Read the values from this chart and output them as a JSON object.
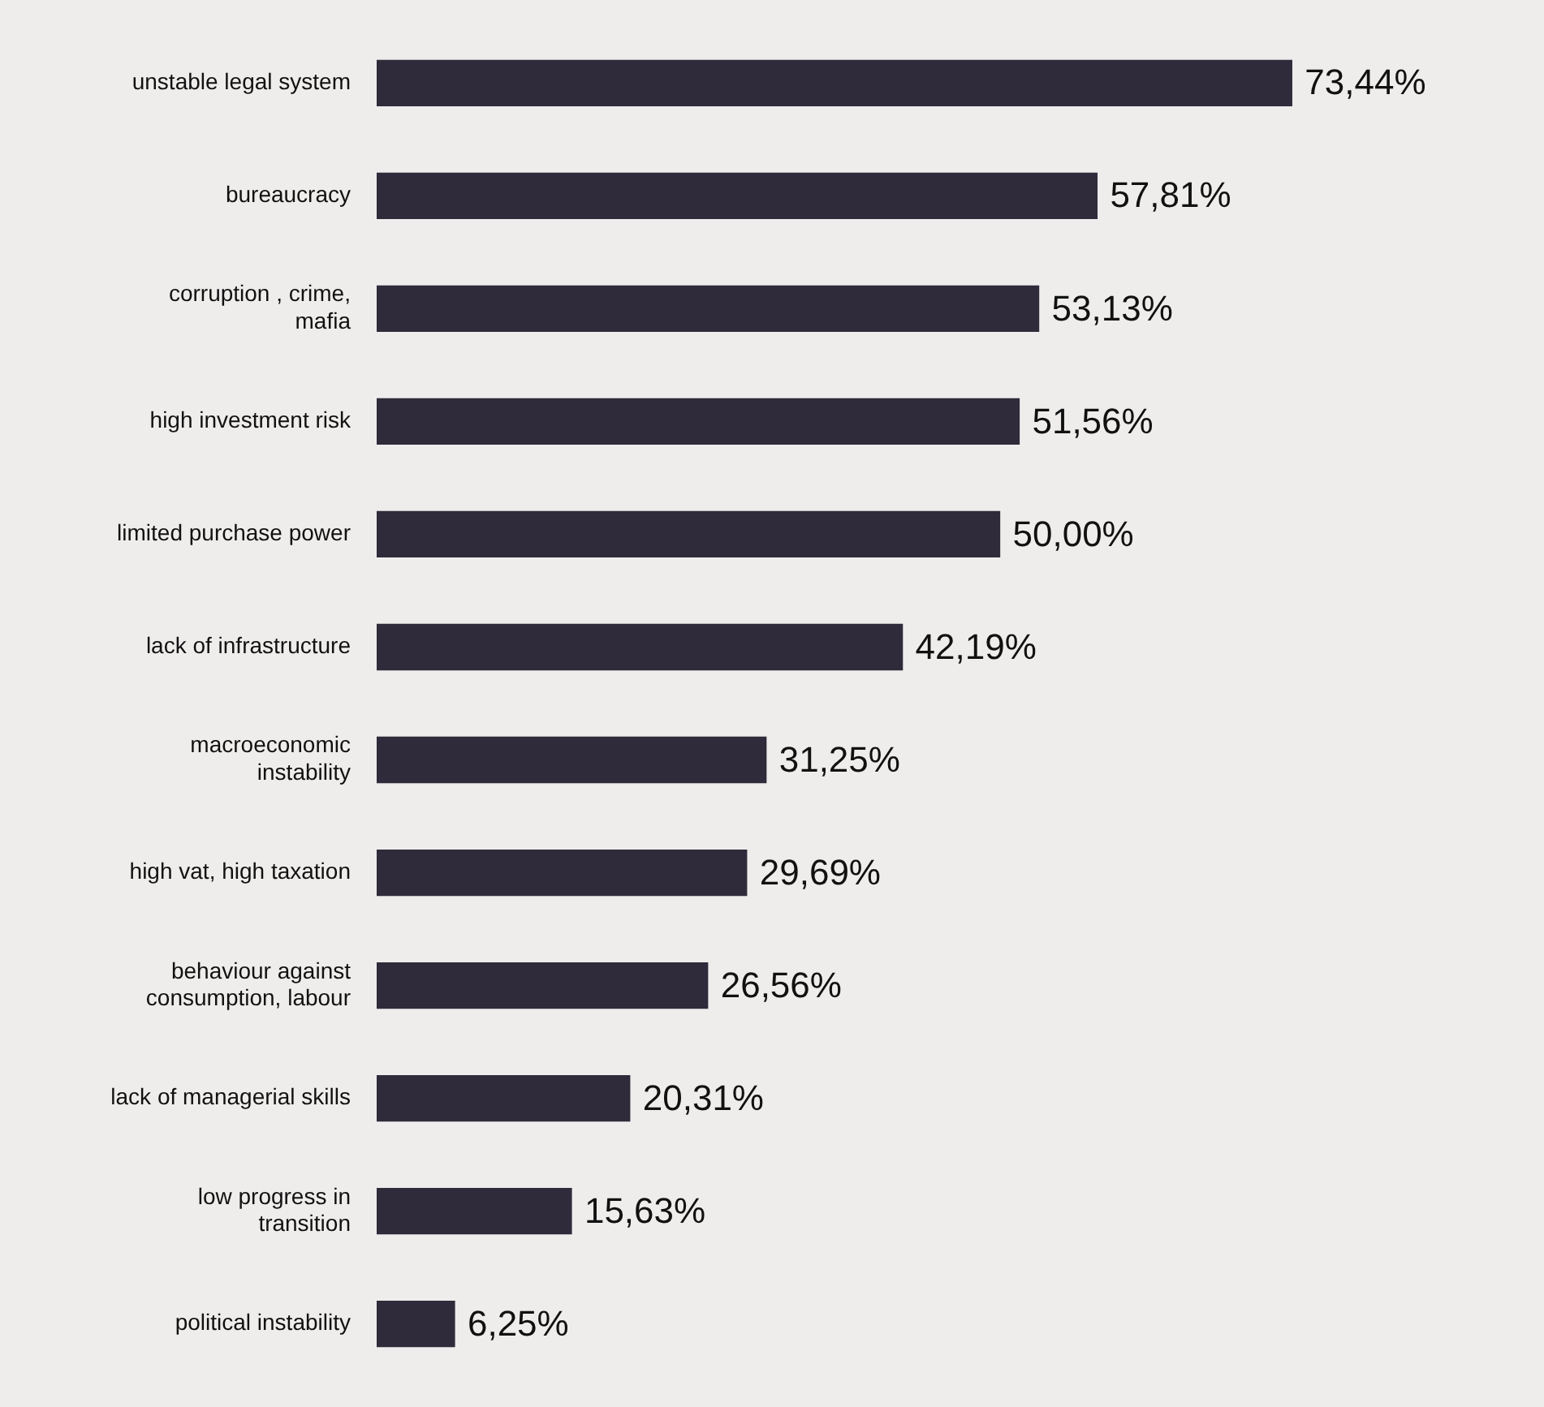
{
  "chart_data": {
    "type": "bar",
    "orientation": "horizontal",
    "categories": [
      "unstable legal system",
      "bureaucracy",
      "corruption , crime,\nmafia",
      "high investment risk",
      "limited purchase power",
      "lack of infrastructure",
      "macroeconomic\ninstability",
      "high vat, high taxation",
      "behaviour against\nconsumption, labour",
      "lack of managerial skills",
      "low progress in\ntransition",
      "political instability"
    ],
    "values": [
      73.44,
      57.81,
      53.13,
      51.56,
      50.0,
      42.19,
      31.25,
      29.69,
      26.56,
      20.31,
      15.63,
      6.25
    ],
    "value_labels": [
      "73,44%",
      "57,81%",
      "53,13%",
      "51,56%",
      "50,00%",
      "42,19%",
      "31,25%",
      "29,69%",
      "26,56%",
      "20,31%",
      "15,63%",
      "6,25%"
    ],
    "color": "#2f2b3b",
    "legend": false
  }
}
